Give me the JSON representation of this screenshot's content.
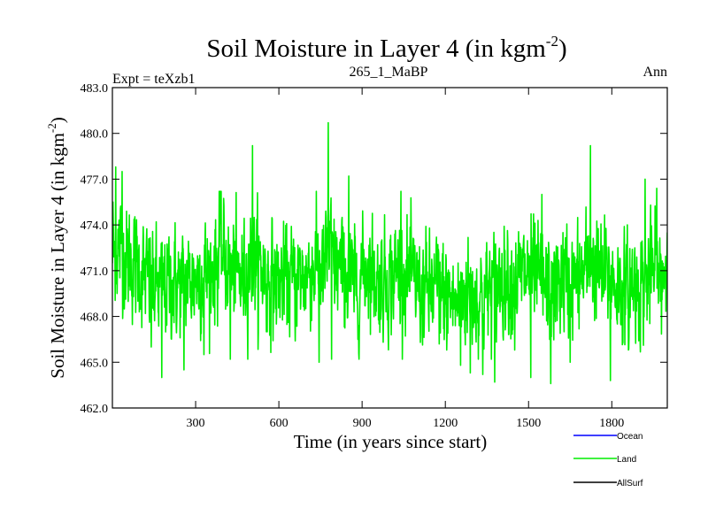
{
  "chart_data": {
    "type": "line",
    "title": {
      "main": "Soil Moisture in Layer 4 (in kgm",
      "sup": "-2",
      "close": ")"
    },
    "subtitle_left": "Expt = teXzb1",
    "subtitle_center": "265_1_MaBP",
    "subtitle_right": "Ann",
    "xlabel": "Time (in years since start)",
    "ylabel": {
      "main": "Soil Moisture in Layer 4 (in kgm",
      "sup": "-2",
      "close": ")"
    },
    "xlim": [
      0,
      2000
    ],
    "ylim": [
      462.0,
      483.0
    ],
    "xticks": [
      300,
      600,
      900,
      1200,
      1500,
      1800
    ],
    "xtick_labels": [
      "300",
      "600",
      "900",
      "1200",
      "1500",
      "1800"
    ],
    "yticks": [
      462.0,
      465.0,
      468.0,
      471.0,
      474.0,
      477.0,
      480.0,
      483.0
    ],
    "ytick_labels": [
      "462.0",
      "465.0",
      "468.0",
      "471.0",
      "474.0",
      "477.0",
      "480.0",
      "483.0"
    ],
    "legend": [
      {
        "name": "Ocean",
        "color": "#0000ff"
      },
      {
        "name": "Land",
        "color": "#00ee00"
      },
      {
        "name": "AllSurf",
        "color": "#000000"
      }
    ],
    "series": [
      {
        "name": "Land",
        "color": "#00ee00",
        "x_start": 0,
        "x_step": 1,
        "anchors_x": [
          0,
          30,
          50,
          70,
          100,
          140,
          175,
          210,
          250,
          300,
          360,
          395,
          420,
          470,
          505,
          540,
          580,
          620,
          660,
          700,
          740,
          760,
          782,
          800,
          840,
          880,
          920,
          960,
          1000,
          1040,
          1070,
          1100,
          1140,
          1170,
          1200,
          1240,
          1280,
          1320,
          1350,
          1380,
          1420,
          1460,
          1500,
          1550,
          1580,
          1620,
          1660,
          1700,
          1725,
          1760,
          1800,
          1840,
          1880,
          1920,
          1950,
          1980,
          2000
        ],
        "anchors_mean": [
          472.0,
          472.5,
          471.8,
          471.5,
          471.0,
          470.0,
          469.8,
          470.3,
          470.0,
          470.6,
          471.0,
          472.3,
          471.0,
          470.5,
          472.0,
          471.0,
          470.2,
          470.4,
          470.3,
          470.8,
          471.5,
          470.8,
          472.5,
          471.5,
          470.6,
          470.0,
          471.5,
          470.2,
          470.5,
          471.2,
          470.5,
          470.0,
          469.6,
          469.8,
          469.5,
          468.8,
          469.8,
          469.2,
          469.5,
          470.2,
          470.6,
          470.5,
          470.8,
          470.2,
          469.3,
          470.5,
          470.0,
          470.8,
          471.5,
          470.6,
          470.5,
          469.5,
          470.2,
          470.0,
          471.0,
          470.5,
          471.8
        ],
        "peaks": [
          [
            2,
            475.5
          ],
          [
            12,
            477.8
          ],
          [
            35,
            477.5
          ],
          [
            80,
            474.2
          ],
          [
            140,
            466.0
          ],
          [
            178,
            464.0
          ],
          [
            258,
            464.5
          ],
          [
            330,
            465.5
          ],
          [
            385,
            476.2
          ],
          [
            425,
            465.2
          ],
          [
            505,
            479.2
          ],
          [
            555,
            467.0
          ],
          [
            745,
            465.0
          ],
          [
            778,
            480.7
          ],
          [
            790,
            465.2
          ],
          [
            852,
            477.2
          ],
          [
            885,
            466.5
          ],
          [
            1040,
            476.2
          ],
          [
            1110,
            466.3
          ],
          [
            1178,
            466.2
          ],
          [
            1205,
            465.8
          ],
          [
            1255,
            464.8
          ],
          [
            1290,
            464.3
          ],
          [
            1335,
            464.2
          ],
          [
            1378,
            463.7
          ],
          [
            1450,
            465.8
          ],
          [
            1508,
            464.0
          ],
          [
            1548,
            476.0
          ],
          [
            1580,
            463.6
          ],
          [
            1650,
            465.0
          ],
          [
            1723,
            479.2
          ],
          [
            1795,
            463.8
          ],
          [
            1860,
            465.8
          ],
          [
            1920,
            477.0
          ],
          [
            1962,
            476.4
          ],
          [
            1975,
            469.0
          ]
        ],
        "noise_std": 1.75
      }
    ]
  }
}
